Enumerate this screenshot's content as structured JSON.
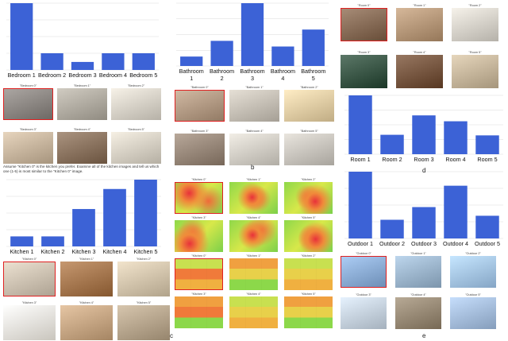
{
  "panel_labels": {
    "b": "b",
    "c": "c",
    "d": "d",
    "e": "e"
  },
  "instruction": "Assume \"Kitchen 0\" is the kitchen you prefer. Examine all of the kitchen images and tell us which one (1-5) is most similar to the \"Kitchen 0\" image.",
  "chart_data": [
    {
      "id": "bedroom",
      "type": "bar",
      "categories": [
        "Bedroom 1",
        "Bedroom 2",
        "Bedroom 3",
        "Bedroom 4",
        "Bedroom 5"
      ],
      "values": [
        100,
        25,
        12,
        25,
        25
      ],
      "ylim": [
        0,
        100
      ],
      "grid": true,
      "title": "",
      "xlabel": "",
      "ylabel": ""
    },
    {
      "id": "bathroom",
      "type": "bar",
      "categories": [
        "Bathroom 1",
        "Bathroom 2",
        "Bathroom 3",
        "Bathroom 4",
        "Bathroom 5"
      ],
      "values": [
        15,
        40,
        100,
        31,
        58
      ],
      "ylim": [
        0,
        100
      ],
      "grid": true,
      "title": "",
      "xlabel": "",
      "ylabel": ""
    },
    {
      "id": "kitchen",
      "type": "bar",
      "categories": [
        "Kitchen 1",
        "Kitchen 2",
        "Kitchen 3",
        "Kitchen 4",
        "Kitchen 5"
      ],
      "values": [
        15,
        15,
        56,
        86,
        100
      ],
      "ylim": [
        0,
        100
      ],
      "grid": true,
      "title": "",
      "xlabel": "",
      "ylabel": ""
    },
    {
      "id": "room",
      "type": "bar",
      "categories": [
        "Room 1",
        "Room 2",
        "Room 3",
        "Room 4",
        "Room 5"
      ],
      "values": [
        100,
        33,
        66,
        56,
        32
      ],
      "ylim": [
        0,
        100
      ],
      "grid": true,
      "title": "",
      "xlabel": "",
      "ylabel": ""
    },
    {
      "id": "outdoor",
      "type": "bar",
      "categories": [
        "Outdoor 1",
        "Outdoor 2",
        "Outdoor 3",
        "Outdoor 4",
        "Outdoor 5"
      ],
      "values": [
        100,
        28,
        47,
        79,
        34
      ],
      "ylim": [
        0,
        100
      ],
      "grid": true,
      "title": "",
      "xlabel": "",
      "ylabel": ""
    }
  ],
  "galleries": {
    "bedroom": {
      "labels": [
        "\"Bedroom 0\"",
        "\"Bedroom 1\"",
        "\"Bedroom 2\"",
        "\"Bedroom 3\"",
        "\"Bedroom 4\"",
        "\"Bedroom 5\""
      ],
      "colors": [
        "#8f8a86",
        "#b3aea4",
        "#d9d4ca",
        "#c9b7a0",
        "#8d7662",
        "#d8d2c6"
      ]
    },
    "bathroom": {
      "labels": [
        "\"Bathroom 0\"",
        "\"Bathroom 1\"",
        "\"Bathroom 2\"",
        "\"Bathroom 3\"",
        "\"Bathroom 4\"",
        "\"Bathroom 5\""
      ],
      "colors": [
        "#b49c86",
        "#c8c2b8",
        "#e3cfa7",
        "#9a8a7c",
        "#d4d0c8",
        "#cbc7c0"
      ]
    },
    "kitchen": {
      "labels": [
        "\"Kitchen 0\"",
        "\"Kitchen 1\"",
        "\"Kitchen 2\"",
        "\"Kitchen 3\"",
        "\"Kitchen 4\"",
        "\"Kitchen 5\""
      ],
      "colors": [
        "#cfc4b4",
        "#a87a52",
        "#d4c6ae",
        "#ece8e0",
        "#c8a886",
        "#b9a890"
      ]
    },
    "heatmap": {
      "labels": [
        "\"Kitchen 0\"",
        "\"Kitchen 1\"",
        "\"Kitchen 2\"",
        "\"Kitchen 3\"",
        "\"Kitchen 4\"",
        "\"Kitchen 5\"",
        "\"Kitchen 0\"",
        "\"Kitchen 1\"",
        "\"Kitchen 2\"",
        "\"Kitchen 3\"",
        "\"Kitchen 4\"",
        "\"Kitchen 5\""
      ]
    },
    "room": {
      "labels": [
        "\"Room 0\"",
        "\"Room 1\"",
        "\"Room 2\"",
        "\"Room 3\"",
        "\"Room 4\"",
        "\"Room 5\""
      ],
      "colors": [
        "#8a6f5a",
        "#b89a7c",
        "#d8d4cc",
        "#3e5a4a",
        "#7a5a44",
        "#c8b89e"
      ]
    },
    "outdoor": {
      "labels": [
        "\"Outdoor 0\"",
        "\"Outdoor 1\"",
        "\"Outdoor 2\"",
        "\"Outdoor 3\"",
        "\"Outdoor 4\"",
        "\"Outdoor 5\""
      ],
      "colors": [
        "#8fb0d8",
        "#9fb8cf",
        "#a8c8e8",
        "#c8d4e0",
        "#9a8c78",
        "#a8c0de"
      ]
    }
  }
}
